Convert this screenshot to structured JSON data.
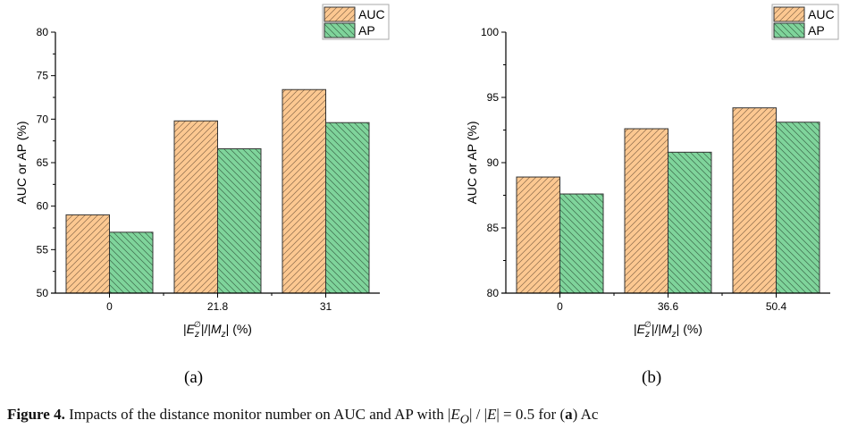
{
  "chart_data": [
    {
      "type": "bar",
      "panel": "(a)",
      "categories": [
        "0",
        "21.8",
        "31"
      ],
      "series": [
        {
          "name": "AUC",
          "values": [
            59.0,
            69.8,
            73.4
          ],
          "color": "#fcc891",
          "hatch": "forward-diagonal"
        },
        {
          "name": "AP",
          "values": [
            57.0,
            66.6,
            69.6
          ],
          "color": "#7fd49b",
          "hatch": "backward-diagonal"
        }
      ],
      "ylabel": "AUC or AP (%)",
      "xlabel": [
        {
          "t": "|"
        },
        {
          "t": "E",
          "i": true
        },
        {
          "t": "z",
          "i": true,
          "sub": true
        },
        {
          "t": "∅",
          "sup": true
        },
        {
          "t": "|/|"
        },
        {
          "t": "M",
          "i": true
        },
        {
          "t": "z",
          "i": true,
          "sub": true
        },
        {
          "t": "| (%)"
        }
      ],
      "ylim": [
        50,
        80
      ],
      "yticks": [
        50,
        55,
        60,
        65,
        70,
        75,
        80
      ],
      "grid": false,
      "legend": "top-right"
    },
    {
      "type": "bar",
      "panel": "(b)",
      "categories": [
        "0",
        "36.6",
        "50.4"
      ],
      "series": [
        {
          "name": "AUC",
          "values": [
            88.9,
            92.6,
            94.2
          ],
          "color": "#fcc891",
          "hatch": "forward-diagonal"
        },
        {
          "name": "AP",
          "values": [
            87.6,
            90.8,
            93.1
          ],
          "color": "#7fd49b",
          "hatch": "backward-diagonal"
        }
      ],
      "ylabel": "AUC or AP (%)",
      "xlabel": [
        {
          "t": "|"
        },
        {
          "t": "E",
          "i": true
        },
        {
          "t": "z",
          "i": true,
          "sub": true
        },
        {
          "t": "∅",
          "sup": true
        },
        {
          "t": "|/|"
        },
        {
          "t": "M",
          "i": true
        },
        {
          "t": "z",
          "i": true,
          "sub": true
        },
        {
          "t": "| (%)"
        }
      ],
      "ylim": [
        80,
        100
      ],
      "yticks": [
        80,
        85,
        90,
        95,
        100
      ],
      "grid": false,
      "legend": "top-right"
    }
  ],
  "caption": {
    "label": "Figure 4.",
    "text1": " Impacts of the distance monitor number on AUC and AP with |",
    "e1": "E",
    "sub": "O",
    "text2": "| / |",
    "e2": "E",
    "text3": "| = 0.5 for (",
    "bold": "a",
    "text4": ") Ac"
  }
}
